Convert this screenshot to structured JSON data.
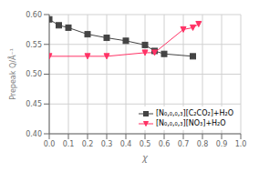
{
  "chart_data": {
    "type": "line",
    "xlabel": "χ",
    "ylabel": "Prepeak Q/Å⁻¹",
    "series": [
      {
        "name": "[N₀,₀,₀,₃][C₂CO₂]+H₂O",
        "color": "#444444",
        "marker": "square",
        "x": [
          0.0,
          0.05,
          0.1,
          0.2,
          0.3,
          0.4,
          0.5,
          0.55,
          0.6,
          0.75
        ],
        "values": [
          0.592,
          0.582,
          0.578,
          0.567,
          0.561,
          0.556,
          0.549,
          0.539,
          0.534,
          0.53
        ]
      },
      {
        "name": "[N₀,₀,₀,₃][NO₃]+H₂O",
        "color": "#ff3366",
        "marker": "triangle_down",
        "x": [
          0.0,
          0.2,
          0.3,
          0.5,
          0.55,
          0.7,
          0.75,
          0.78
        ],
        "values": [
          0.53,
          0.53,
          0.53,
          0.536,
          0.536,
          0.575,
          0.578,
          0.584
        ]
      }
    ],
    "xlim": [
      0.0,
      1.0
    ],
    "ylim": [
      0.4,
      0.6
    ],
    "xticks": [
      {
        "value": 0.0,
        "label": "0.0"
      },
      0.1,
      0.2,
      0.3,
      0.4,
      0.5,
      0.6,
      0.7,
      0.8,
      0.9,
      {
        "value": 1.0,
        "label": "1.0"
      }
    ],
    "yticks": [
      {
        "value": 0.4,
        "label": "0.40"
      },
      0.45,
      {
        "value": 0.5,
        "label": "0.50"
      },
      0.55,
      {
        "value": 0.6,
        "label": "0.60"
      }
    ],
    "grid": true,
    "legend": "lower right"
  }
}
